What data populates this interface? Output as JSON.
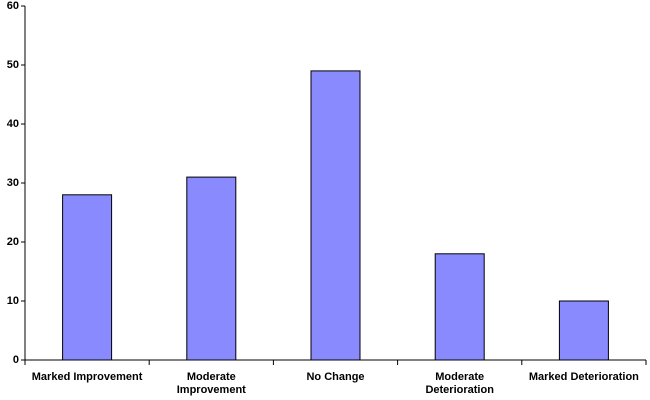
{
  "chart_data": {
    "type": "bar",
    "categories": [
      "Marked Improvement",
      "Moderate\nImprovement",
      "No Change",
      "Moderate\nDeterioration",
      "Marked Deterioration"
    ],
    "values": [
      28,
      31,
      49,
      18,
      10
    ],
    "color": "#8a8aff",
    "ylim": [
      0,
      60
    ],
    "yticks": [
      0,
      10,
      20,
      30,
      40,
      50,
      60
    ],
    "grid": false
  }
}
